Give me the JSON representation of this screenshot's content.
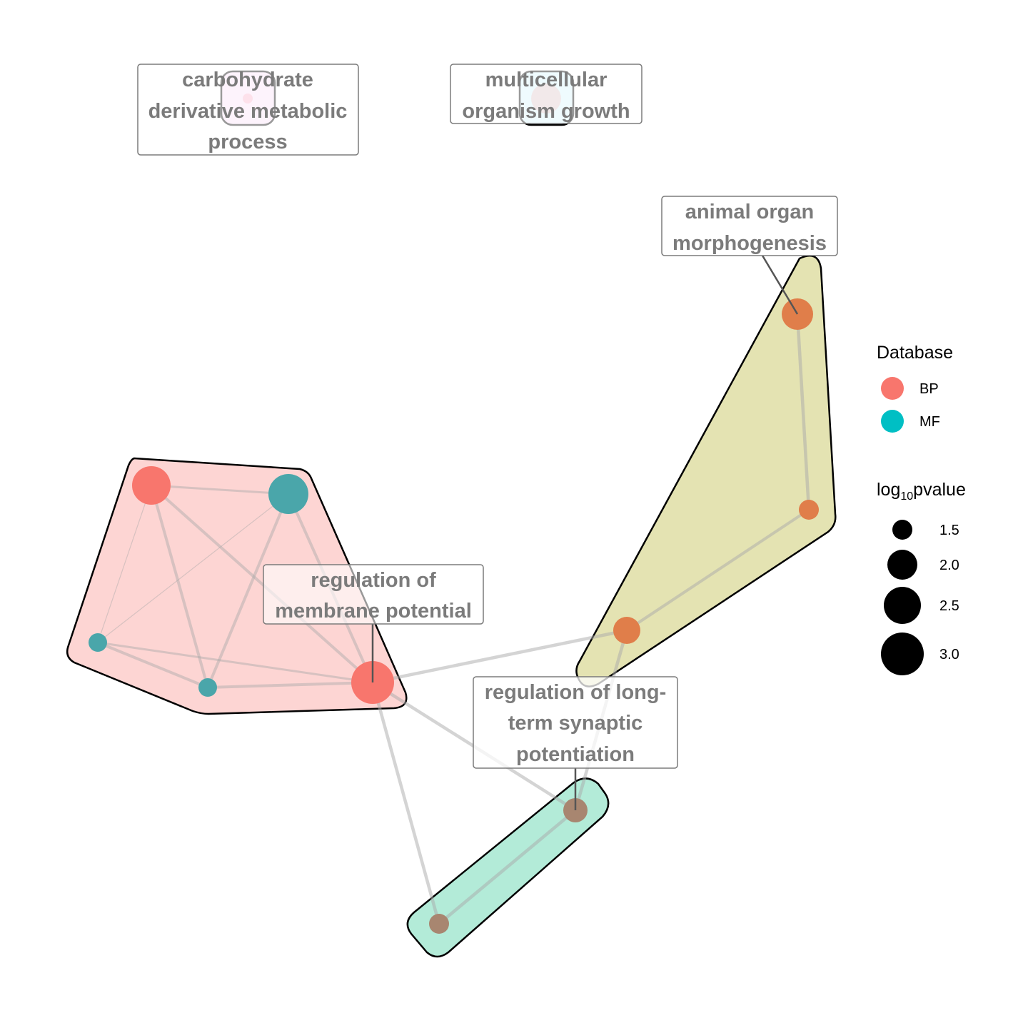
{
  "colors": {
    "bp": "#F8766D",
    "mf": "#00BFC4",
    "edge": "#a9a9a9",
    "label_text": "#7b7b7b"
  },
  "clusters": [
    {
      "id": "c1",
      "label": [
        "carbohydrate",
        "derivative metabolic",
        "process"
      ],
      "fill": "#FBE0F7"
    },
    {
      "id": "c2",
      "label": [
        "multicellular",
        "organism growth"
      ],
      "fill": "#D7F5FC"
    },
    {
      "id": "c3",
      "label": [
        "animal organ",
        "morphogenesis"
      ],
      "fill": "#E4E3B2"
    },
    {
      "id": "c4",
      "label": [
        "regulation of",
        "membrane potential"
      ],
      "fill": "#FDD5D3"
    },
    {
      "id": "c5",
      "label": [
        "regulation of long-",
        "term synaptic",
        "potentiation"
      ],
      "fill": "#B3EBD8"
    }
  ],
  "legend": {
    "database_title": "Database",
    "database_items": [
      {
        "label": "BP",
        "color": "#F8766D"
      },
      {
        "label": "MF",
        "color": "#00BFC4"
      }
    ],
    "pvalue_title_prefix": "log",
    "pvalue_title_sub": "10",
    "pvalue_title_suffix": "pvalue",
    "pvalue_items": [
      "1.5",
      "2.0",
      "2.5",
      "3.0"
    ]
  }
}
